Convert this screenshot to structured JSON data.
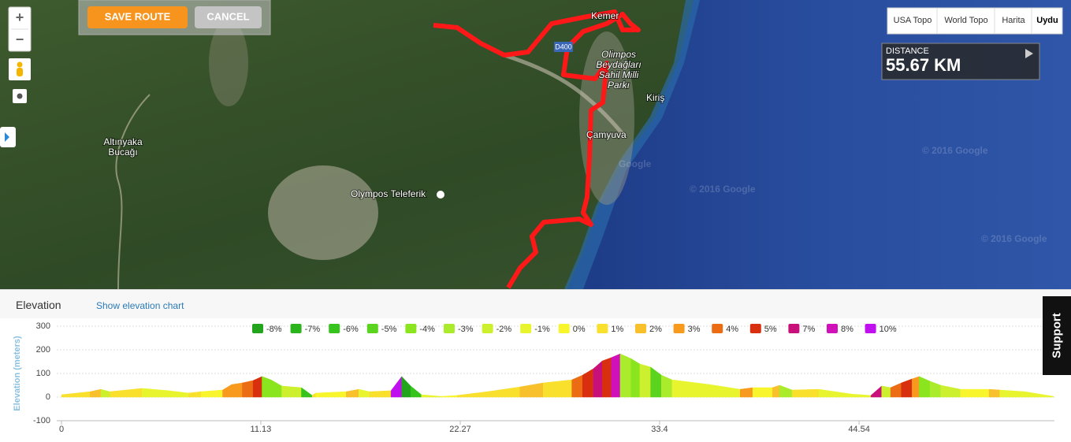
{
  "map": {
    "controls": {
      "zoom_in": "+",
      "zoom_out": "−",
      "save": "SAVE ROUTE",
      "cancel": "CANCEL"
    },
    "map_types": [
      "USA Topo",
      "World Topo",
      "Harita",
      "Uydu"
    ],
    "distance": {
      "label": "DISTANCE",
      "value": "55.67 KM"
    },
    "labels": {
      "kemer": "Kemer",
      "road": "D400",
      "park": [
        "Olimpos",
        "Beydağları",
        "Sahil Milli",
        "Parkı"
      ],
      "kiris": "Kiriş",
      "camyuva": "Çamyuva",
      "altinyaka": [
        "Altınyaka",
        "Bucağı"
      ],
      "teleferik": "Olympos Teleferik",
      "google": "Google"
    },
    "attribution": [
      "© 2016 Google",
      "© 2016 Google",
      "© 2016 Google"
    ]
  },
  "elevation_panel": {
    "title": "Elevation",
    "link": "Show elevation chart"
  },
  "support": "Support",
  "chart_data": {
    "type": "area",
    "y_label": "Elevation (meters)",
    "x": [
      0,
      1.6,
      2.2,
      2.7,
      4.0,
      4.5,
      6.0,
      7.1,
      7.8,
      9.0,
      9.5,
      10.1,
      10.7,
      11.2,
      11.7,
      12.3,
      13.4,
      14.0,
      14.2,
      15.9,
      16.6,
      17.2,
      18.4,
      19.0,
      19.5,
      20.1,
      21.2,
      22.1,
      23.8,
      25.6,
      26.9,
      28.5,
      29.1,
      29.7,
      30.2,
      30.7,
      31.2,
      31.8,
      32.3,
      32.9,
      33.5,
      34.1,
      36.2,
      37.9,
      38.6,
      39.7,
      40.1,
      40.8,
      42.3,
      43.2,
      44.1,
      45.2,
      45.8,
      46.3,
      46.9,
      47.5,
      47.9,
      48.5,
      49.1,
      50.2,
      51.8,
      52.4,
      53.8,
      55.4
    ],
    "values": [
      10,
      23,
      33,
      23,
      33,
      37,
      27,
      17,
      23,
      30,
      53,
      60,
      70,
      87,
      73,
      47,
      40,
      7,
      17,
      23,
      33,
      23,
      27,
      87,
      47,
      10,
      3,
      7,
      23,
      43,
      60,
      73,
      93,
      120,
      153,
      167,
      183,
      163,
      140,
      127,
      93,
      73,
      53,
      33,
      40,
      40,
      50,
      30,
      33,
      23,
      13,
      7,
      47,
      40,
      60,
      77,
      87,
      67,
      50,
      33,
      33,
      30,
      23,
      3
    ],
    "segment_grades": [
      1,
      2,
      -2,
      1,
      1,
      -1,
      -1,
      1,
      0,
      3,
      3,
      4,
      5,
      -4,
      -4,
      -2,
      -6,
      1,
      0,
      2,
      -1,
      1,
      10,
      -8,
      -6,
      -1,
      0,
      1,
      1,
      2,
      1,
      4,
      5,
      7,
      5,
      8,
      -3,
      -4,
      -2,
      -5,
      -3,
      -1,
      -1,
      3,
      0,
      2,
      -3,
      1,
      -1,
      -1,
      -1,
      7,
      -2,
      4,
      5,
      3,
      -4,
      -3,
      -2,
      0,
      2,
      -1,
      -1
    ],
    "grades": [
      {
        "name": "-8%",
        "value": -8,
        "color": "#22a41c"
      },
      {
        "name": "-7%",
        "value": -7,
        "color": "#2cb41c"
      },
      {
        "name": "-6%",
        "value": -6,
        "color": "#36c41c"
      },
      {
        "name": "-5%",
        "value": -5,
        "color": "#5ad41e"
      },
      {
        "name": "-4%",
        "value": -4,
        "color": "#8ae41e"
      },
      {
        "name": "-3%",
        "value": -3,
        "color": "#aaec2c"
      },
      {
        "name": "-2%",
        "value": -2,
        "color": "#ccf02e"
      },
      {
        "name": "-1%",
        "value": -1,
        "color": "#e8f52e"
      },
      {
        "name": "0%",
        "value": 0,
        "color": "#f8f52c"
      },
      {
        "name": "1%",
        "value": 1,
        "color": "#f8e02c"
      },
      {
        "name": "2%",
        "value": 2,
        "color": "#f8c02a"
      },
      {
        "name": "3%",
        "value": 3,
        "color": "#f89a1e"
      },
      {
        "name": "4%",
        "value": 4,
        "color": "#ec6c14"
      },
      {
        "name": "5%",
        "value": 5,
        "color": "#d8300e"
      },
      {
        "name": "7%",
        "value": 7,
        "color": "#c8107a"
      },
      {
        "name": "8%",
        "value": 8,
        "color": "#d010b8"
      },
      {
        "name": "10%",
        "value": 10,
        "color": "#c010f0"
      }
    ],
    "xlim": [
      0,
      55.67
    ],
    "ylim": [
      -100,
      300
    ],
    "xticks": [
      0,
      11.13,
      22.27,
      33.4,
      44.54
    ],
    "yticks": [
      -100,
      0,
      100,
      200,
      300
    ],
    "grid": true
  }
}
